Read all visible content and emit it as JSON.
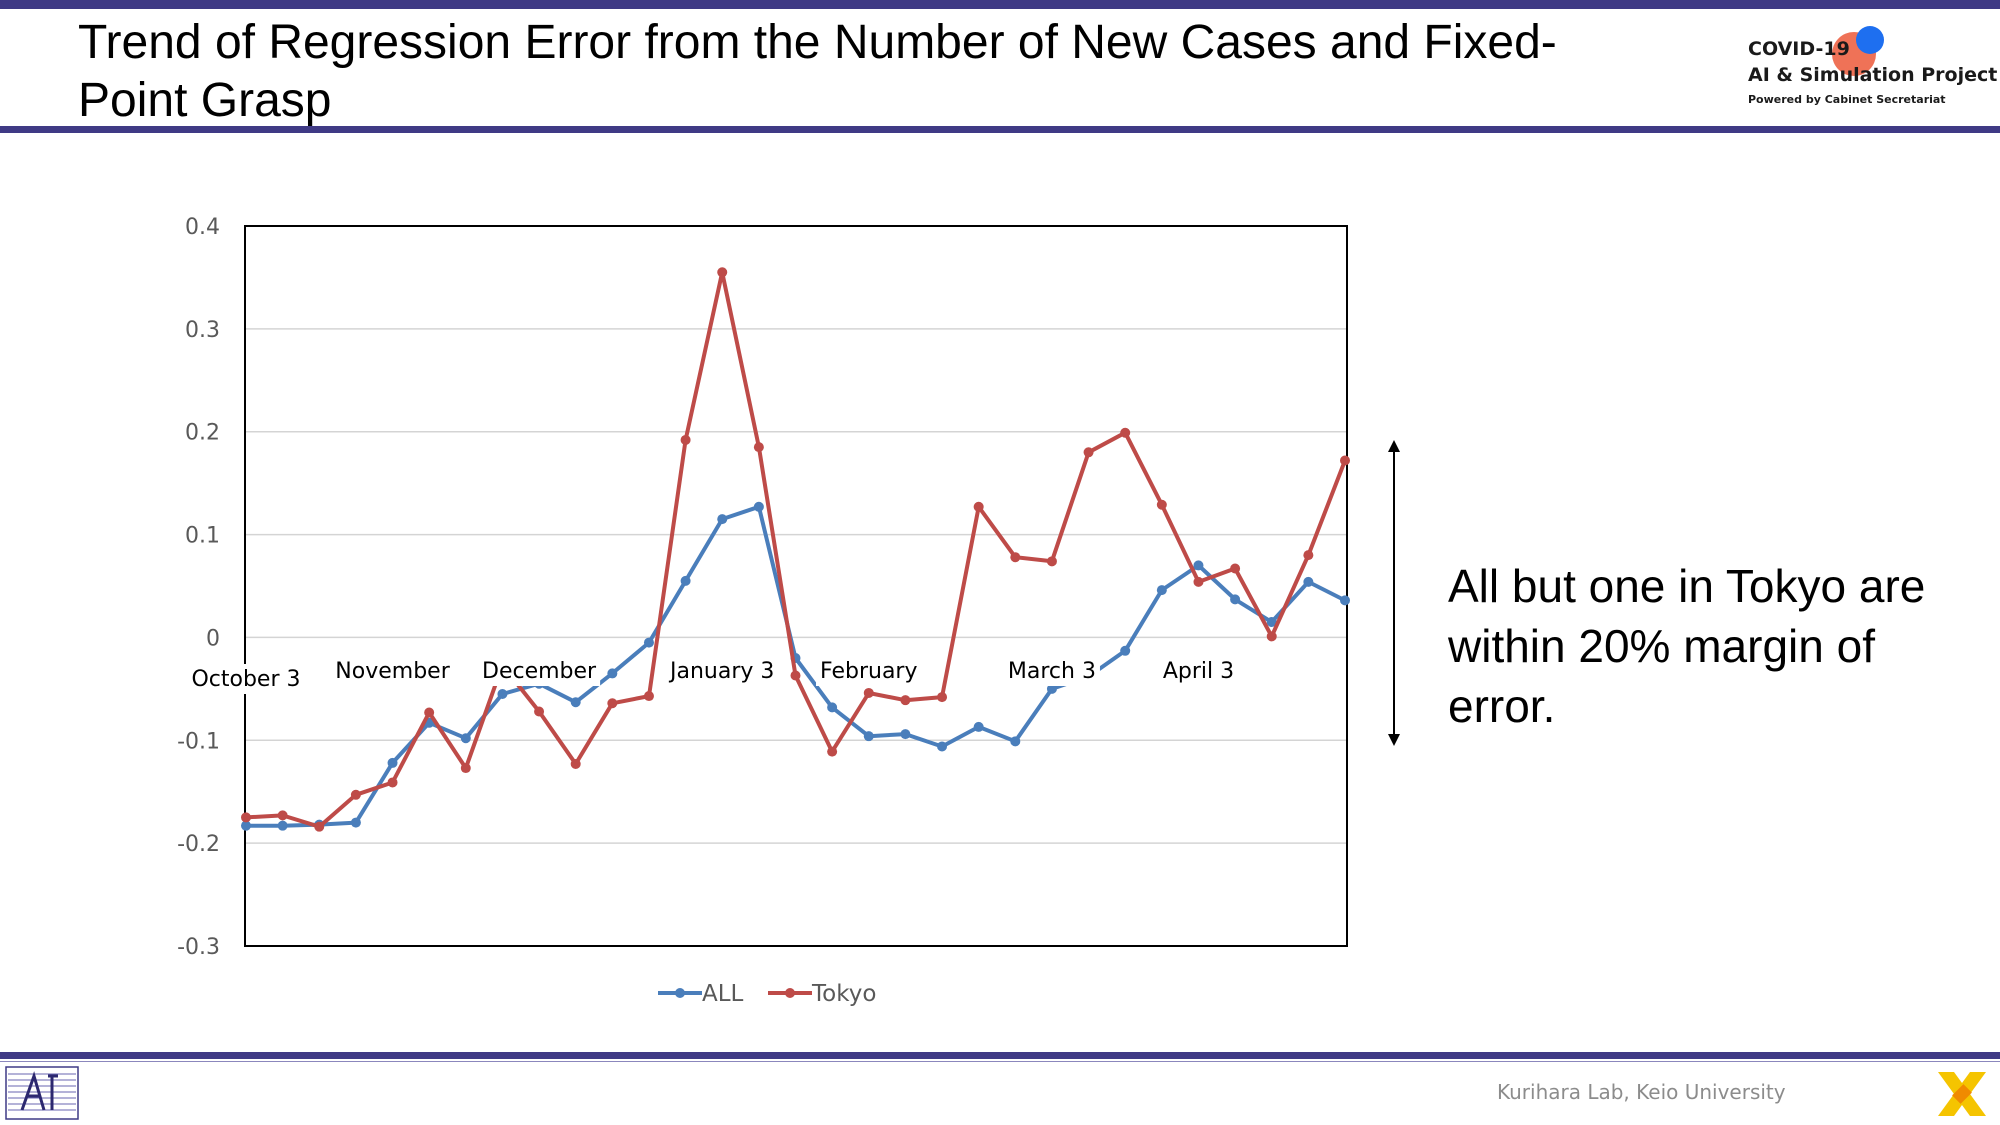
{
  "slide": {
    "title": "Trend of Regression Error from the Number of New Cases and Fixed-Point Grasp",
    "annotation": "All but one in Tokyo are within 20% margin of error.",
    "footer": "Kurihara Lab, Keio University"
  },
  "logo": {
    "line1": "COVID-19",
    "line2": "AI & Simulation Project",
    "line3": "Powered by Cabinet Secretariat",
    "colors": {
      "orange": "#ee6a4e",
      "blue": "#1e6ff0"
    }
  },
  "colors": {
    "accent": "#3f3a85",
    "all": "#4a7ebb",
    "tokyo": "#be4b48",
    "footer_mark": "#f5c400"
  },
  "chart_data": {
    "type": "line",
    "title": "",
    "xlabel": "",
    "ylabel": "",
    "ylim": [
      -0.3,
      0.4
    ],
    "yticks": [
      0.4,
      0.3,
      0.2,
      0.1,
      0,
      -0.1,
      -0.2,
      -0.3
    ],
    "ytick_labels": [
      "0.4",
      "0.3",
      "0.2",
      "0.1",
      "0",
      "-0.1",
      "-0.2",
      "-0.3"
    ],
    "grid": true,
    "legend_position": "bottom",
    "x_labels": [
      {
        "text": "October 3",
        "index": 0
      },
      {
        "text": "November",
        "index": 4
      },
      {
        "text": "December",
        "index": 8
      },
      {
        "text": "January 3",
        "index": 13
      },
      {
        "text": "February",
        "index": 17
      },
      {
        "text": "March 3",
        "index": 22
      },
      {
        "text": "April 3",
        "index": 26
      }
    ],
    "series": [
      {
        "name": "ALL",
        "color": "#4a7ebb",
        "values": [
          -0.183,
          -0.183,
          -0.182,
          -0.18,
          -0.122,
          -0.083,
          -0.098,
          -0.055,
          -0.045,
          -0.063,
          -0.035,
          -0.005,
          0.055,
          0.115,
          0.127,
          -0.02,
          -0.068,
          -0.096,
          -0.094,
          -0.106,
          -0.087,
          -0.101,
          -0.05,
          -0.038,
          -0.013,
          0.046,
          0.07,
          0.037,
          0.015,
          0.054,
          0.036
        ]
      },
      {
        "name": "Tokyo",
        "color": "#be4b48",
        "values": [
          -0.175,
          -0.173,
          -0.184,
          -0.153,
          -0.141,
          -0.073,
          -0.127,
          -0.027,
          -0.072,
          -0.123,
          -0.064,
          -0.057,
          0.192,
          0.355,
          0.185,
          -0.037,
          -0.111,
          -0.054,
          -0.061,
          -0.058,
          0.127,
          0.078,
          0.074,
          0.18,
          0.199,
          0.129,
          0.054,
          0.067,
          0.001,
          0.08,
          0.172
        ]
      }
    ]
  }
}
